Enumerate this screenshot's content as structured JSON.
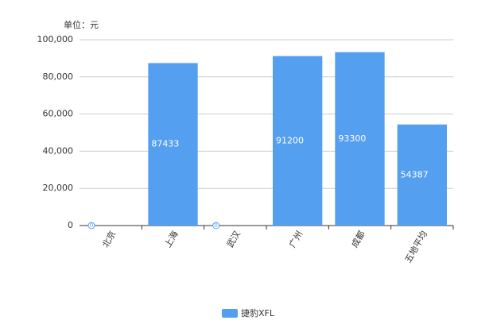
{
  "chart_data": {
    "type": "bar",
    "y_axis_label": "单位：元",
    "categories": [
      "北京",
      "上海",
      "武汉",
      "广州",
      "成都",
      "五地平均"
    ],
    "series": [
      {
        "name": "捷豹XFL",
        "color": "#559ff0",
        "values": [
          0,
          87433,
          0,
          91200,
          93300,
          54387
        ]
      }
    ],
    "ylim": [
      0,
      100000
    ],
    "yticks": [
      0,
      {
        "value": 20000,
        "label": "20,000"
      },
      {
        "value": 40000,
        "label": "40,000"
      },
      {
        "value": 60000,
        "label": "60,000"
      },
      {
        "value": 80000,
        "label": "80,000"
      },
      {
        "value": 100000,
        "label": "100,000"
      }
    ],
    "grid": true
  }
}
